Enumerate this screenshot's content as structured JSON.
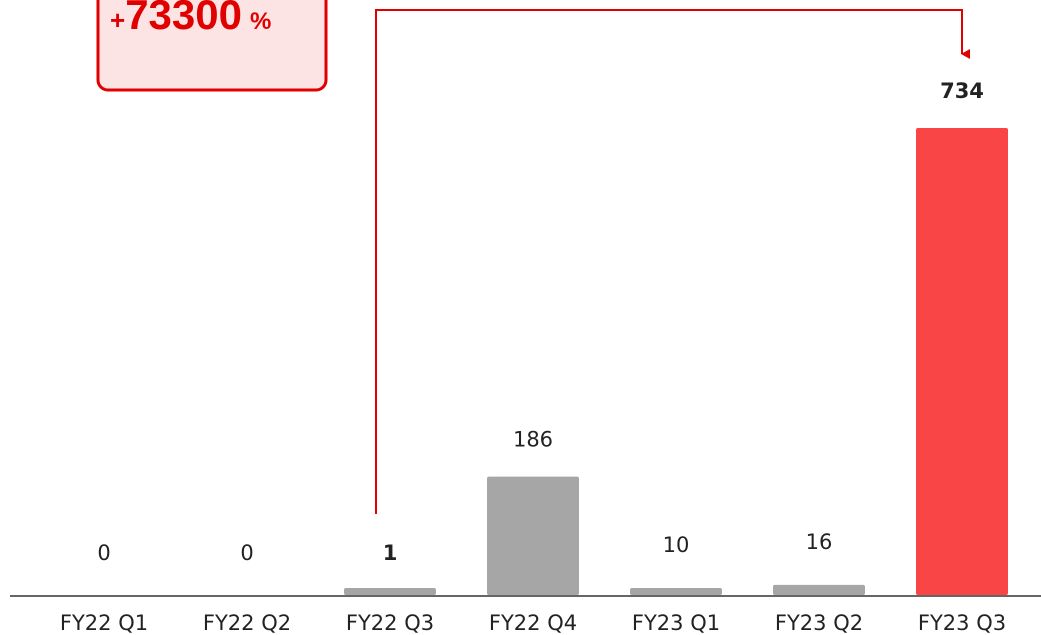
{
  "chart_data": {
    "type": "bar",
    "categories": [
      "FY22 Q1",
      "FY22 Q2",
      "FY22 Q3",
      "FY22 Q4",
      "FY23 Q1",
      "FY23 Q2",
      "FY23 Q3"
    ],
    "values": [
      0,
      0,
      1,
      186,
      10,
      16,
      734
    ],
    "value_labels": [
      "0",
      "0",
      "1",
      "186",
      "10",
      "16",
      "734"
    ],
    "bold_labels": [
      false,
      false,
      true,
      false,
      false,
      false,
      true
    ],
    "ylim": [
      0,
      734
    ],
    "grid": false,
    "colors": {
      "default_bar": "#a6a6a6",
      "highlight_bar": "#f94545",
      "callout": "#e00000",
      "callout_fill": "#fde4e4",
      "axis": "#333333"
    },
    "highlight_index": 6,
    "callout": {
      "sign": "+",
      "number": "73300",
      "unit": "%",
      "from_category": "FY22 Q3",
      "to_category": "FY23 Q3"
    }
  }
}
